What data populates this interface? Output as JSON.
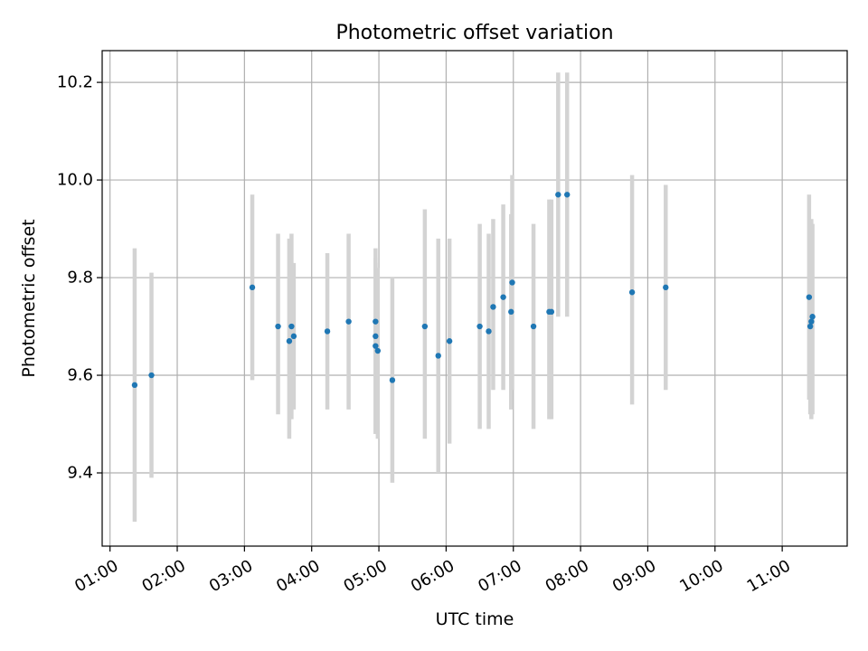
{
  "chart_data": {
    "type": "scatter",
    "title": "Photometric offset variation",
    "xlabel": "UTC time",
    "ylabel": "Photometric offset",
    "xlim": [
      "00:53",
      "11:58"
    ],
    "ylim": [
      9.25,
      10.265
    ],
    "grid": true,
    "x_ticks": [
      "01:00",
      "02:00",
      "03:00",
      "04:00",
      "05:00",
      "06:00",
      "07:00",
      "08:00",
      "09:00",
      "10:00",
      "11:00"
    ],
    "y_ticks": [
      9.4,
      9.6,
      9.8,
      10.0,
      10.2
    ],
    "y_tick_labels": [
      "9.4",
      "9.6",
      "9.8",
      "10.0",
      "10.2"
    ],
    "colors": {
      "points": "#1f77b4",
      "error_bars": "#d3d3d3",
      "grid": "#b0b0b0"
    },
    "points": [
      {
        "t": "01:22",
        "y": 9.58,
        "lo": 9.3,
        "hi": 9.86
      },
      {
        "t": "01:37",
        "y": 9.6,
        "lo": 9.39,
        "hi": 9.81
      },
      {
        "t": "03:07",
        "y": 9.78,
        "lo": 9.59,
        "hi": 9.97
      },
      {
        "t": "03:30",
        "y": 9.7,
        "lo": 9.52,
        "hi": 9.89
      },
      {
        "t": "03:40",
        "y": 9.67,
        "lo": 9.47,
        "hi": 9.88
      },
      {
        "t": "03:42",
        "y": 9.7,
        "lo": 9.51,
        "hi": 9.89
      },
      {
        "t": "03:44",
        "y": 9.68,
        "lo": 9.53,
        "hi": 9.83
      },
      {
        "t": "04:14",
        "y": 9.69,
        "lo": 9.53,
        "hi": 9.85
      },
      {
        "t": "04:33",
        "y": 9.71,
        "lo": 9.53,
        "hi": 9.89
      },
      {
        "t": "04:57",
        "y": 9.71,
        "lo": 9.48,
        "hi": 9.86
      },
      {
        "t": "04:57",
        "y": 9.68,
        "lo": 9.5,
        "hi": 9.84
      },
      {
        "t": "04:57",
        "y": 9.66,
        "lo": 9.48,
        "hi": 9.83
      },
      {
        "t": "04:59",
        "y": 9.65,
        "lo": 9.47,
        "hi": 9.82
      },
      {
        "t": "05:12",
        "y": 9.59,
        "lo": 9.38,
        "hi": 9.8
      },
      {
        "t": "05:41",
        "y": 9.7,
        "lo": 9.47,
        "hi": 9.94
      },
      {
        "t": "05:53",
        "y": 9.64,
        "lo": 9.4,
        "hi": 9.88
      },
      {
        "t": "06:03",
        "y": 9.67,
        "lo": 9.46,
        "hi": 9.88
      },
      {
        "t": "06:30",
        "y": 9.7,
        "lo": 9.49,
        "hi": 9.91
      },
      {
        "t": "06:38",
        "y": 9.69,
        "lo": 9.49,
        "hi": 9.89
      },
      {
        "t": "06:42",
        "y": 9.74,
        "lo": 9.57,
        "hi": 9.92
      },
      {
        "t": "06:51",
        "y": 9.76,
        "lo": 9.57,
        "hi": 9.95
      },
      {
        "t": "06:58",
        "y": 9.73,
        "lo": 9.53,
        "hi": 9.93
      },
      {
        "t": "06:59",
        "y": 9.79,
        "lo": 9.57,
        "hi": 10.01
      },
      {
        "t": "07:18",
        "y": 9.7,
        "lo": 9.49,
        "hi": 9.91
      },
      {
        "t": "07:32",
        "y": 9.73,
        "lo": 9.51,
        "hi": 9.96
      },
      {
        "t": "07:34",
        "y": 9.73,
        "lo": 9.51,
        "hi": 9.96
      },
      {
        "t": "07:40",
        "y": 9.97,
        "lo": 9.72,
        "hi": 10.22
      },
      {
        "t": "07:48",
        "y": 9.97,
        "lo": 9.72,
        "hi": 10.22
      },
      {
        "t": "08:46",
        "y": 9.77,
        "lo": 9.54,
        "hi": 10.01
      },
      {
        "t": "09:16",
        "y": 9.78,
        "lo": 9.57,
        "hi": 9.99
      },
      {
        "t": "11:24",
        "y": 9.76,
        "lo": 9.55,
        "hi": 9.97
      },
      {
        "t": "11:25",
        "y": 9.7,
        "lo": 9.52,
        "hi": 9.88
      },
      {
        "t": "11:26",
        "y": 9.71,
        "lo": 9.51,
        "hi": 9.92
      },
      {
        "t": "11:27",
        "y": 9.72,
        "lo": 9.52,
        "hi": 9.91
      }
    ]
  }
}
